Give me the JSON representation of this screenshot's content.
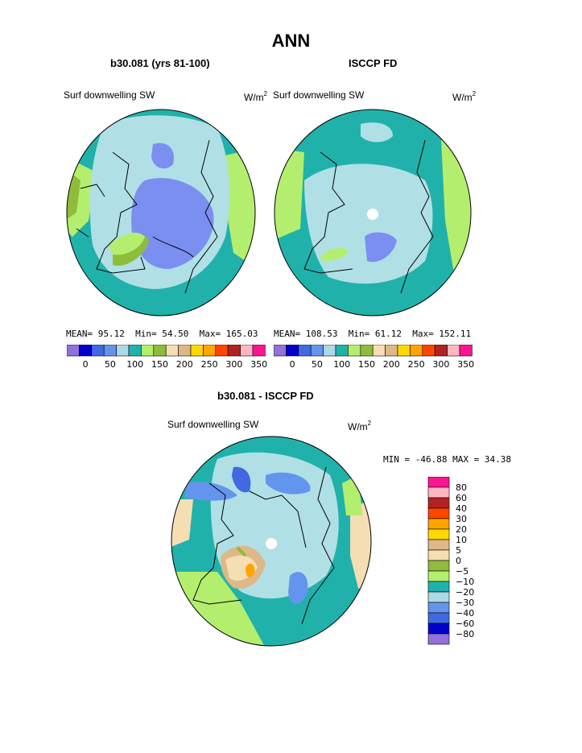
{
  "page": {
    "title": "ANN",
    "panels": [
      {
        "subtitle": "b30.081 (yrs 81-100)",
        "field_label": "Surf downwelling SW",
        "units": "W/m",
        "units_sup": "2",
        "stats": {
          "mean_label": "MEAN=",
          "mean": "95.12",
          "min_label": "Min=",
          "min": "54.50",
          "max_label": "Max=",
          "max": "165.03"
        }
      },
      {
        "subtitle": "ISCCP FD",
        "field_label": "Surf downwelling SW",
        "units": "W/m",
        "units_sup": "2",
        "stats": {
          "mean_label": "MEAN=",
          "mean": "108.53",
          "min_label": "Min=",
          "min": "61.12",
          "max_label": "Max=",
          "max": "152.11"
        }
      }
    ],
    "diff": {
      "subtitle": "b30.081 - ISCCP FD",
      "field_label": "Surf downwelling SW",
      "units": "W/m",
      "units_sup": "2",
      "minmax": "MIN = -46.88 MAX =  34.38"
    }
  },
  "colorbar_top": {
    "colors": [
      "#9370db",
      "#0000cd",
      "#4169e1",
      "#6495ed",
      "#add8e6",
      "#20b2aa",
      "#b4ee6e",
      "#8fbc3a",
      "#f5deb3",
      "#deb887",
      "#ffd700",
      "#ffa500",
      "#ff4500",
      "#b22222",
      "#ffb6c1",
      "#ff1493"
    ],
    "labels": [
      "0",
      "50",
      "100",
      "150",
      "200",
      "250",
      "300",
      "350"
    ]
  },
  "colorbar_diff": {
    "colors": [
      "#ff1493",
      "#ffb6c1",
      "#b22222",
      "#ff4500",
      "#ffa500",
      "#ffd700",
      "#deb887",
      "#f5deb3",
      "#8fbc3a",
      "#b4ee6e",
      "#20b2aa",
      "#add8e6",
      "#6495ed",
      "#4169e1",
      "#0000cd",
      "#9370db"
    ],
    "labels": [
      "80",
      "60",
      "40",
      "30",
      "20",
      "10",
      "5",
      "0",
      "−5",
      "−10",
      "−20",
      "−30",
      "−40",
      "−60",
      "−80"
    ]
  },
  "map_colors": {
    "teal": "#20b2aa",
    "lightblue": "#b0e0e6",
    "blue": "#7b8ff0",
    "darkblue": "#4169e1",
    "lightgreen": "#b4ee6e",
    "olive": "#8fbc3a",
    "wheat": "#f5deb3",
    "tan": "#deb887",
    "orange": "#ffa500",
    "white": "#ffffff"
  }
}
